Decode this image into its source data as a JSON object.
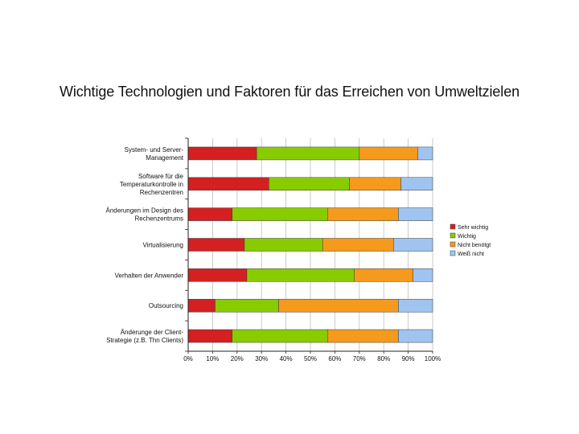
{
  "chart_data": {
    "type": "bar",
    "orientation": "horizontal",
    "stacked": "percent",
    "title": "Wichtige Technologien und Faktoren für das Erreichen von Umweltzielen",
    "categories": [
      [
        "System- und Server-",
        "Management"
      ],
      [
        "Software für die",
        "Temperaturkontrolle in",
        "Rechenzentren"
      ],
      [
        "Änderungen im Design des",
        "Rechenzentrums"
      ],
      [
        "Virtualisierung"
      ],
      [
        "Verhalten der Anwender"
      ],
      [
        "Outsourcing"
      ],
      [
        "Änderunge der Client-",
        "Strategie (z.B. Thn Clients)"
      ]
    ],
    "series": [
      {
        "name": "Sehr wichtig",
        "color": "#d42020",
        "values": [
          28,
          33,
          18,
          23,
          24,
          11,
          18
        ]
      },
      {
        "name": "Wichtig",
        "color": "#88cc00",
        "values": [
          42,
          33,
          39,
          32,
          44,
          26,
          39
        ]
      },
      {
        "name": "Nicht benötgt",
        "color": "#f59a1c",
        "values": [
          24,
          21,
          29,
          29,
          24,
          49,
          29
        ]
      },
      {
        "name": "Weiß nicht",
        "color": "#a0c4f0",
        "values": [
          6,
          13,
          14,
          16,
          8,
          14,
          14
        ]
      }
    ],
    "xticks": [
      "0%",
      "10%",
      "20%",
      "30%",
      "40%",
      "50%",
      "60%",
      "70%",
      "80%",
      "90%",
      "100%"
    ],
    "xlim": [
      0,
      100
    ],
    "grid": true,
    "legend": "right"
  }
}
